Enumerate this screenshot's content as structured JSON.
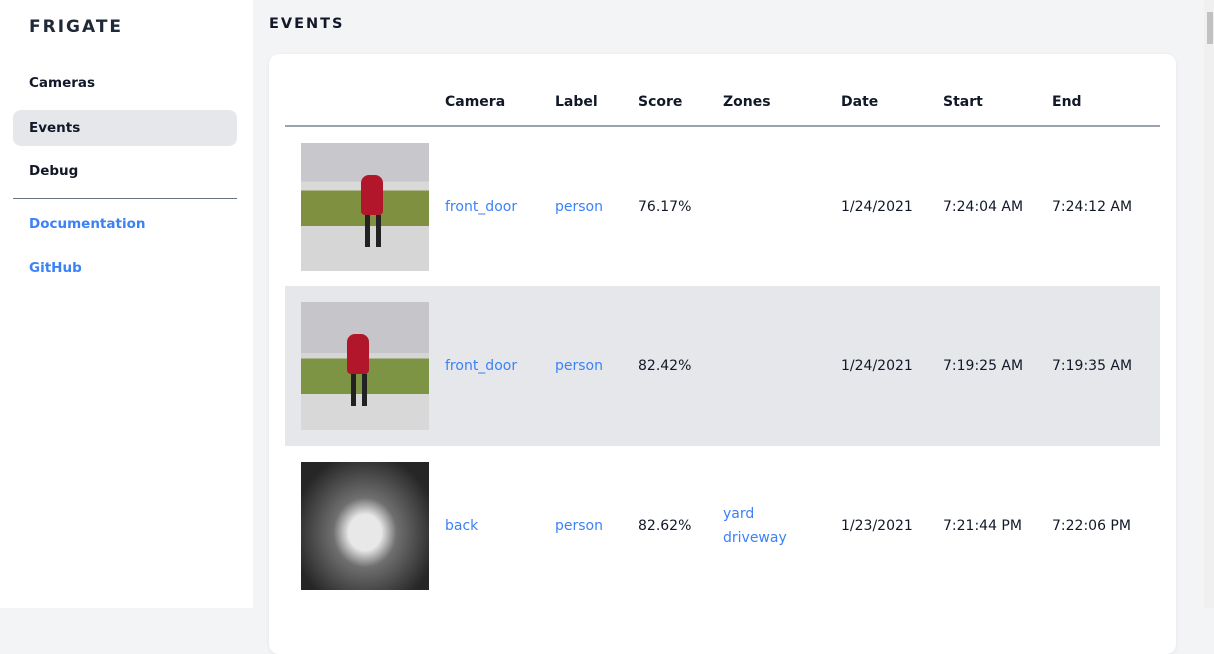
{
  "sidebar": {
    "brand": "FRIGATE",
    "items": [
      {
        "label": "Cameras"
      },
      {
        "label": "Events",
        "active": true
      },
      {
        "label": "Debug"
      }
    ],
    "links": [
      {
        "label": "Documentation"
      },
      {
        "label": "GitHub"
      }
    ]
  },
  "page": {
    "title": "EVENTS"
  },
  "table": {
    "headers": [
      "",
      "Camera",
      "Label",
      "Score",
      "Zones",
      "Date",
      "Start",
      "End"
    ],
    "rows": [
      {
        "thumbnail": "person walking dog",
        "camera": "front_door",
        "label": "person",
        "score": "76.17%",
        "zones": [
          "",
          ""
        ],
        "date": "1/24/2021",
        "start": "7:24:04 AM",
        "end": "7:24:12 AM"
      },
      {
        "thumbnail": "person walking dog",
        "camera": "front_door",
        "label": "person",
        "score": "82.42%",
        "zones": [
          "",
          ""
        ],
        "date": "1/24/2021",
        "start": "7:19:25 AM",
        "end": "7:19:35 AM"
      },
      {
        "thumbnail": "person at night",
        "camera": "back",
        "label": "person",
        "score": "82.62%",
        "zones": [
          "yard",
          "driveway"
        ],
        "date": "1/23/2021",
        "start": "7:21:44 PM",
        "end": "7:22:06 PM"
      }
    ]
  },
  "colors": {
    "accent": "#3b82f6",
    "active_bg": "#e5e7eb"
  }
}
